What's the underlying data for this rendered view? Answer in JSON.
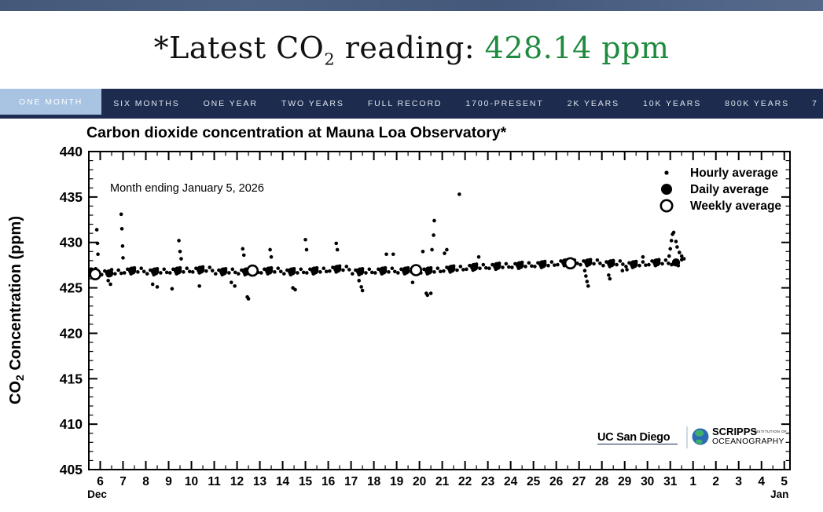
{
  "header": {
    "title_prefix": "*Latest CO",
    "title_sub": "2",
    "title_mid": " reading: ",
    "value": "428.14 ppm",
    "value_color": "#1e8a3e"
  },
  "nav": {
    "bg": "#1d2c4e",
    "active_bg": "#a8c4e2",
    "items": [
      {
        "label": "ONE MONTH",
        "active": true
      },
      {
        "label": "SIX MONTHS",
        "active": false
      },
      {
        "label": "ONE YEAR",
        "active": false
      },
      {
        "label": "TWO YEARS",
        "active": false
      },
      {
        "label": "FULL RECORD",
        "active": false
      },
      {
        "label": "1700-PRESENT",
        "active": false
      },
      {
        "label": "2K YEARS",
        "active": false
      },
      {
        "label": "10K YEARS",
        "active": false
      },
      {
        "label": "800K YEARS",
        "active": false
      },
      {
        "label": "7",
        "active": false,
        "clipped": true
      }
    ]
  },
  "chart_data": {
    "type": "scatter",
    "title": "Carbon dioxide concentration at Mauna Loa Observatory*",
    "annotation": "Month ending January 5, 2026",
    "ylabel_pre": "CO",
    "ylabel_sub": "2",
    "ylabel_post": " Concentration (ppm)",
    "xlim": [
      5.5,
      36.25
    ],
    "ylim": [
      405,
      440
    ],
    "y_major_ticks": [
      405,
      410,
      415,
      420,
      425,
      430,
      435,
      440
    ],
    "x_first_day": 6,
    "x_tick_labels": [
      "6",
      "7",
      "8",
      "9",
      "10",
      "11",
      "12",
      "13",
      "14",
      "15",
      "16",
      "17",
      "18",
      "19",
      "20",
      "21",
      "22",
      "23",
      "24",
      "25",
      "26",
      "27",
      "28",
      "29",
      "30",
      "31",
      "1",
      "2",
      "3",
      "4",
      "5"
    ],
    "x_month_labels": [
      {
        "tick_index": 0,
        "label": "Dec",
        "dx": -4
      },
      {
        "tick_index": 30,
        "label": "Jan",
        "dx": -6
      }
    ],
    "legend": [
      {
        "label": "Hourly average",
        "marker": "small-dot"
      },
      {
        "label": "Daily average",
        "marker": "large-dot"
      },
      {
        "label": "Weekly average",
        "marker": "open-circle"
      }
    ],
    "series": {
      "hourly": {
        "band_days": [
          [
            6,
            426.7
          ],
          [
            7,
            426.9
          ],
          [
            8,
            426.8
          ],
          [
            9,
            426.9
          ],
          [
            10,
            427.0
          ],
          [
            11,
            426.8
          ],
          [
            12,
            426.8
          ],
          [
            13,
            426.9
          ],
          [
            14,
            426.8
          ],
          [
            15,
            426.9
          ],
          [
            16,
            427.1
          ],
          [
            17,
            426.8
          ],
          [
            18,
            426.9
          ],
          [
            19,
            426.9
          ],
          [
            20,
            426.9
          ],
          [
            21,
            427.1
          ],
          [
            22,
            427.3
          ],
          [
            23,
            427.4
          ],
          [
            24,
            427.5
          ],
          [
            25,
            427.6
          ],
          [
            26,
            427.8
          ],
          [
            27,
            427.8
          ],
          [
            28,
            427.7
          ],
          [
            29,
            427.6
          ],
          [
            30,
            427.8
          ],
          [
            31,
            427.8
          ]
        ],
        "band_pattern": [
          [
            0.06,
            -0.25
          ],
          [
            0.2,
            0.15
          ],
          [
            0.35,
            -0.35
          ],
          [
            0.5,
            0.3
          ],
          [
            0.65,
            -0.15
          ],
          [
            0.8,
            0.25
          ],
          [
            0.92,
            -0.1
          ]
        ],
        "band_end": 31.62,
        "extra_points": [
          [
            5.55,
            426.5
          ],
          [
            5.6,
            427.0
          ],
          [
            5.7,
            426.4
          ],
          [
            5.8,
            427.1
          ],
          [
            5.95,
            426.6
          ],
          [
            5.85,
            431.4
          ],
          [
            5.88,
            429.9
          ],
          [
            5.9,
            428.7
          ],
          [
            6.35,
            425.8
          ],
          [
            6.45,
            425.4
          ],
          [
            6.92,
            433.1
          ],
          [
            6.95,
            431.5
          ],
          [
            6.98,
            429.6
          ],
          [
            7.0,
            428.3
          ],
          [
            8.3,
            425.4
          ],
          [
            8.5,
            425.1
          ],
          [
            9.15,
            424.9
          ],
          [
            9.45,
            430.2
          ],
          [
            9.5,
            429.0
          ],
          [
            9.55,
            428.2
          ],
          [
            10.35,
            425.2
          ],
          [
            11.75,
            425.6
          ],
          [
            11.9,
            425.2
          ],
          [
            12.25,
            429.3
          ],
          [
            12.3,
            428.6
          ],
          [
            12.45,
            424.0
          ],
          [
            12.5,
            423.8
          ],
          [
            13.45,
            429.2
          ],
          [
            13.5,
            428.4
          ],
          [
            14.45,
            425.0
          ],
          [
            14.55,
            424.8
          ],
          [
            15.0,
            430.3
          ],
          [
            15.05,
            429.2
          ],
          [
            16.35,
            429.9
          ],
          [
            16.4,
            429.2
          ],
          [
            17.35,
            425.8
          ],
          [
            17.45,
            425.1
          ],
          [
            17.5,
            424.7
          ],
          [
            18.55,
            428.7
          ],
          [
            18.85,
            428.7
          ],
          [
            19.7,
            425.6
          ],
          [
            20.15,
            429.0
          ],
          [
            20.3,
            424.4
          ],
          [
            20.35,
            424.2
          ],
          [
            20.5,
            424.4
          ],
          [
            20.55,
            429.2
          ],
          [
            20.62,
            430.8
          ],
          [
            20.65,
            432.4
          ],
          [
            21.1,
            428.8
          ],
          [
            21.2,
            429.2
          ],
          [
            21.75,
            435.3
          ],
          [
            22.6,
            428.4
          ],
          [
            27.25,
            426.9
          ],
          [
            27.3,
            426.3
          ],
          [
            27.35,
            425.7
          ],
          [
            27.4,
            425.2
          ],
          [
            28.3,
            426.4
          ],
          [
            28.35,
            426.0
          ],
          [
            28.9,
            426.9
          ],
          [
            29.1,
            427.0
          ],
          [
            29.8,
            428.4
          ],
          [
            30.95,
            428.5
          ],
          [
            31.0,
            429.3
          ],
          [
            31.05,
            430.2
          ],
          [
            31.1,
            430.9
          ],
          [
            31.15,
            431.1
          ],
          [
            31.25,
            430.1
          ],
          [
            31.3,
            429.5
          ],
          [
            31.4,
            428.9
          ],
          [
            31.5,
            428.5
          ],
          [
            31.6,
            428.2
          ]
        ]
      },
      "daily": {
        "points": [
          [
            5.6,
            426.8
          ],
          [
            6.4,
            426.6
          ],
          [
            7.4,
            426.9
          ],
          [
            8.4,
            426.8
          ],
          [
            9.4,
            426.9
          ],
          [
            10.4,
            427.0
          ],
          [
            11.4,
            426.8
          ],
          [
            12.4,
            426.8
          ],
          [
            13.4,
            426.9
          ],
          [
            14.4,
            426.8
          ],
          [
            15.4,
            426.9
          ],
          [
            16.4,
            427.1
          ],
          [
            17.4,
            426.8
          ],
          [
            18.4,
            426.9
          ],
          [
            19.4,
            426.9
          ],
          [
            20.4,
            426.9
          ],
          [
            21.4,
            427.1
          ],
          [
            22.4,
            427.3
          ],
          [
            23.4,
            427.4
          ],
          [
            24.4,
            427.5
          ],
          [
            25.4,
            427.6
          ],
          [
            26.4,
            427.8
          ],
          [
            27.4,
            427.8
          ],
          [
            28.4,
            427.7
          ],
          [
            29.4,
            427.6
          ],
          [
            30.4,
            427.8
          ],
          [
            31.25,
            427.8
          ]
        ]
      },
      "weekly": {
        "points": [
          [
            5.78,
            426.5
          ],
          [
            12.68,
            426.9
          ],
          [
            19.85,
            426.95
          ],
          [
            26.62,
            427.7
          ]
        ]
      }
    },
    "logos": {
      "uc": "UC San Diego",
      "scripps_line1": "SCRIPPS",
      "scripps_small": "INSTITUTION OF",
      "scripps_line2": "OCEANOGRAPHY",
      "color": "#16294b"
    }
  }
}
